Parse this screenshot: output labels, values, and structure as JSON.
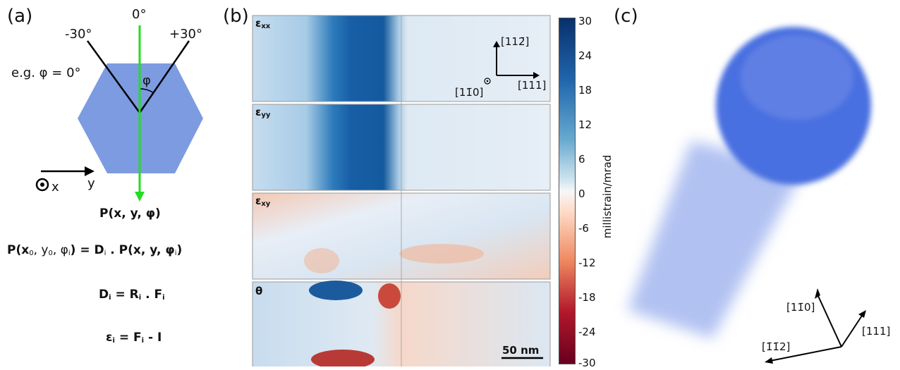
{
  "panel_labels": [
    "(a)",
    "(b)",
    "(c)"
  ],
  "panel_a": {
    "angles": [
      "-30°",
      "0°",
      "+30°"
    ],
    "example": "e.g. φ = 0°",
    "phi": "φ",
    "axis_x": "x",
    "axis_y": "y",
    "hexagon_color": "#7d9be0",
    "beam_color": "#22dd22",
    "eq1": "P(x, y, φ)",
    "eq2": {
      "lhs": "P(x",
      "s0": "0",
      "c1": ", y",
      "s1": "0",
      "c2": ", φ",
      "s2": "i",
      "mid": ") = D",
      "s3": "i",
      "rhs": " . P(x, y, φ",
      "s4": "i",
      "end": ")"
    },
    "eq3": {
      "a": "D",
      "s1": "i",
      "b": " = R",
      "s2": "i",
      "c": " . F",
      "s3": "i"
    },
    "eq4": {
      "a": "ε",
      "s1": "i",
      "b": " = F",
      "s2": "i",
      "c": " - I"
    }
  },
  "panel_b": {
    "maps": [
      {
        "label": "ε",
        "sub": "xx"
      },
      {
        "label": "ε",
        "sub": "yy"
      },
      {
        "label": "ε",
        "sub": "xy"
      },
      {
        "label": "θ",
        "sub": ""
      }
    ],
    "directions": {
      "up": "[112̄]",
      "right": "[111]",
      "out": "[11̄0]"
    },
    "scalebar": "50 nm",
    "colorbar": {
      "title": "millistrain/mrad",
      "ticks": [
        "30",
        "24",
        "18",
        "12",
        "6",
        "0",
        "-6",
        "-12",
        "-18",
        "-24",
        "-30"
      ],
      "max_color": "#08306b",
      "zero_color": "#f7f7f7",
      "min_color": "#67001f"
    }
  },
  "panel_c": {
    "directions": [
      "[11̄0]",
      "[111]",
      "[1̄1̄2]"
    ],
    "volume_color": "#4a6fe0"
  }
}
